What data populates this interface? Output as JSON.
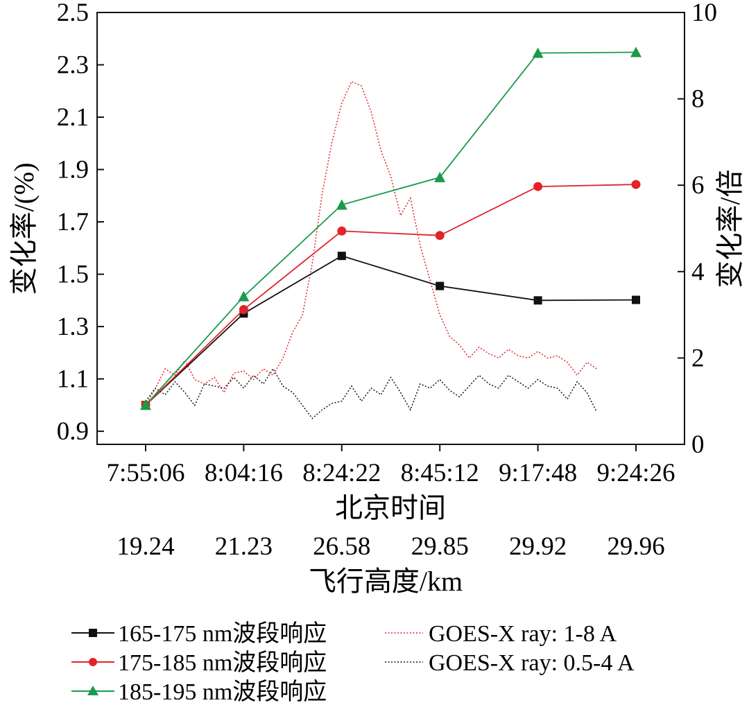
{
  "chart_data": {
    "type": "line",
    "x_labels": [
      "7:55:06",
      "8:04:16",
      "8:24:22",
      "8:45:12",
      "9:17:48",
      "9:24:26"
    ],
    "x2_labels": [
      "19.24",
      "21.23",
      "26.58",
      "29.85",
      "29.92",
      "29.96"
    ],
    "xlabel": "北京时间",
    "x2label": "飞行高度/km",
    "ylabel": "变化率/(%)",
    "y2label": "变化率/倍",
    "ylim": [
      0.85,
      2.5
    ],
    "y_ticks": [
      "0.9",
      "1.1",
      "1.3",
      "1.5",
      "1.7",
      "1.9",
      "2.1",
      "2.3",
      "2.5"
    ],
    "y2lim": [
      0,
      10
    ],
    "y2_ticks": [
      "0",
      "2",
      "4",
      "6",
      "8",
      "10"
    ],
    "grid": false,
    "legend_position": "bottom",
    "series": [
      {
        "name": "165-175 nm波段响应",
        "axis": "left",
        "color": "#111111",
        "marker": "square",
        "values": [
          1.0,
          1.35,
          1.57,
          1.455,
          1.4,
          1.402
        ]
      },
      {
        "name": "175-185 nm波段响应",
        "axis": "left",
        "color": "#e0242a",
        "marker": "circle",
        "values": [
          1.0,
          1.365,
          1.665,
          1.648,
          1.835,
          1.843
        ]
      },
      {
        "name": "185-195 nm波段响应",
        "axis": "left",
        "color": "#1a9a4a",
        "marker": "triangle",
        "values": [
          1.0,
          1.415,
          1.765,
          1.87,
          2.345,
          2.348
        ]
      },
      {
        "name": "GOES-X ray: 1-8 A",
        "axis": "right",
        "color": "#e0242a",
        "style": "dotted",
        "x": [
          0.0,
          0.1,
          0.2,
          0.3,
          0.4,
          0.5,
          0.6,
          0.7,
          0.8,
          0.9,
          1.0,
          1.1,
          1.2,
          1.3,
          1.4,
          1.5,
          1.6,
          1.7,
          1.8,
          1.9,
          2.0,
          2.1,
          2.2,
          2.3,
          2.4,
          2.5,
          2.6,
          2.7,
          2.8,
          2.9,
          3.0,
          3.1,
          3.2,
          3.3,
          3.4,
          3.5,
          3.6,
          3.7,
          3.8,
          3.9,
          4.0,
          4.1,
          4.2,
          4.3,
          4.4,
          4.5,
          4.6
        ],
        "values": [
          0.9,
          1.3,
          1.75,
          1.6,
          1.95,
          1.5,
          1.4,
          1.55,
          1.2,
          1.65,
          1.7,
          1.5,
          1.75,
          1.6,
          2.0,
          2.6,
          3.0,
          4.2,
          5.8,
          7.0,
          7.9,
          8.4,
          8.3,
          7.7,
          6.8,
          6.2,
          5.3,
          5.7,
          4.6,
          3.8,
          3.0,
          2.5,
          2.3,
          2.0,
          2.25,
          2.1,
          2.0,
          2.2,
          2.05,
          2.0,
          2.15,
          2.0,
          2.05,
          1.9,
          1.6,
          1.9,
          1.75
        ]
      },
      {
        "name": "GOES-X ray: 0.5-4 A",
        "axis": "right",
        "color": "#111111",
        "style": "dotted",
        "x": [
          0.0,
          0.1,
          0.2,
          0.3,
          0.4,
          0.5,
          0.6,
          0.7,
          0.8,
          0.9,
          1.0,
          1.1,
          1.2,
          1.3,
          1.4,
          1.5,
          1.6,
          1.7,
          1.8,
          1.9,
          2.0,
          2.1,
          2.2,
          2.3,
          2.4,
          2.5,
          2.6,
          2.7,
          2.8,
          2.9,
          3.0,
          3.1,
          3.2,
          3.3,
          3.4,
          3.5,
          3.6,
          3.7,
          3.8,
          3.9,
          4.0,
          4.1,
          4.2,
          4.3,
          4.4,
          4.5,
          4.6
        ],
        "values": [
          1.0,
          1.3,
          1.15,
          1.45,
          1.2,
          0.9,
          1.4,
          1.35,
          1.3,
          1.55,
          1.3,
          1.6,
          1.4,
          1.75,
          1.35,
          1.2,
          0.9,
          0.6,
          0.8,
          0.95,
          1.0,
          1.35,
          1.0,
          1.3,
          1.15,
          1.55,
          1.2,
          0.8,
          1.4,
          1.3,
          1.5,
          1.25,
          1.1,
          1.35,
          1.6,
          1.4,
          1.3,
          1.6,
          1.45,
          1.3,
          1.5,
          1.35,
          1.3,
          1.05,
          1.45,
          1.2,
          0.75
        ]
      }
    ]
  }
}
